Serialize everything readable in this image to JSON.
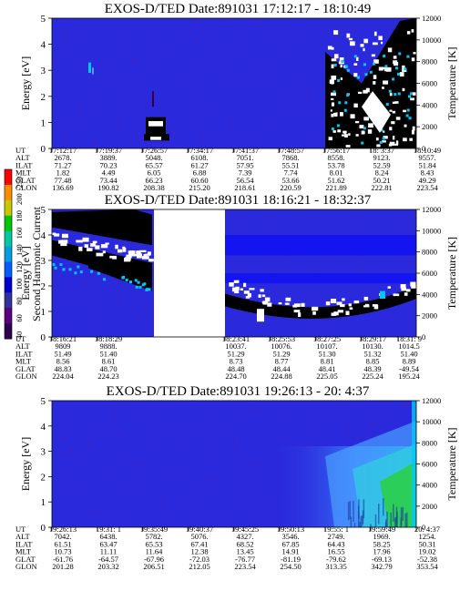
{
  "colors": {
    "background": "#2a2adc",
    "band": "#1414f0",
    "dark": "#000000",
    "white": "#ffffff",
    "cyan": "#00c8ff",
    "teal": "#009696",
    "green": "#28d228",
    "lightblue": "#50a0ff"
  },
  "colorbar": {
    "label": "Second Harmonic Current",
    "ticks": [
      "40",
      "60",
      "80",
      "100",
      "120",
      "140",
      "160",
      "180",
      "200",
      "250"
    ],
    "colors": [
      "#2e0050",
      "#5a0080",
      "#3030a0",
      "#0000d0",
      "#0060ff",
      "#00a0e0",
      "#00c8a0",
      "#00c800",
      "#c8c800",
      "#ff8c00",
      "#ff0000"
    ]
  },
  "chart_data": [
    {
      "type": "heatmap",
      "title": "EXOS-D/TED   Date:891031   17:12:17 - 18:10:49",
      "ylabel": "Energy [eV]",
      "ylabel_right": "Temperature [K]",
      "ylim": [
        0,
        5
      ],
      "ylim_right": [
        0,
        12000
      ],
      "yticks": [
        "0",
        "1",
        "2",
        "3",
        "4",
        "5"
      ],
      "yticks_right": [
        "0",
        "2000",
        "4000",
        "6000",
        "8000",
        "10000",
        "12000"
      ],
      "ephemeris": {
        "labels": [
          "UT",
          "ALT",
          "ILAT",
          "MLT",
          "GLAT",
          "GLON"
        ],
        "columns": [
          [
            "17:12:17",
            "2678.",
            "71.27",
            "1.82",
            "77.48",
            "136.69"
          ],
          [
            "17:19:37",
            "3889.",
            "70.23",
            "4.49",
            "73.44",
            "190.82"
          ],
          [
            "17:26:57",
            "5048.",
            "65.57",
            "6.05",
            "66.23",
            "208.38"
          ],
          [
            "17:34:17",
            "6108.",
            "61.27",
            "6.88",
            "60.60",
            "215.20"
          ],
          [
            "17:41:37",
            "7051.",
            "57.95",
            "7.39",
            "56.54",
            "218.61"
          ],
          [
            "17:48:57",
            "7868.",
            "55.51",
            "7.74",
            "53.66",
            "220.59"
          ],
          [
            "17:56:17",
            "8558.",
            "53.78",
            "8.01",
            "51.62",
            "221.89"
          ],
          [
            "18: 3:37",
            "9123.",
            "52.59",
            "8.24",
            "50.21",
            "222.81"
          ],
          [
            "18:10:49",
            "9557.",
            "51.84",
            "8.43",
            "49.29",
            "223.54"
          ]
        ]
      }
    },
    {
      "type": "heatmap",
      "title": "EXOS-D/TED   Date:891031   18:16:21 - 18:32:37",
      "ylabel": "Energy [eV]",
      "ylabel_right": "Temperature [K]",
      "ylim": [
        0,
        5
      ],
      "ylim_right": [
        0,
        12000
      ],
      "yticks": [
        "0",
        "1",
        "2",
        "3",
        "4",
        "5"
      ],
      "yticks_right": [
        "0",
        "2000",
        "4000",
        "6000",
        "8000",
        "10000",
        "12000"
      ],
      "ephemeris": {
        "labels": [
          "UT",
          "ALT",
          "ILAT",
          "MLT",
          "GLAT",
          "GLON"
        ],
        "columns": [
          [
            "18:16:21",
            "9809",
            "51.49",
            "8.56",
            "48.83",
            "224.04"
          ],
          [
            "18:18:29",
            "9888.",
            "51.40",
            "8.61",
            "48.70",
            "224.23"
          ],
          [
            "18:23:41",
            "10037.",
            "51.29",
            "8.73",
            "48.48",
            "224.70"
          ],
          [
            "18:25:53",
            "10076.",
            "51.29",
            "8.77",
            "48.44",
            "224.88"
          ],
          [
            "18:27:25",
            "10107.",
            "51.30",
            "8.81",
            "48.41",
            "225.05"
          ],
          [
            "18:29:17",
            "10130.",
            "51.32",
            "8.85",
            "48.39",
            "225.24"
          ],
          [
            "18:31: 9",
            "1014.5",
            "51.40",
            "8.89",
            "-49.54",
            "195.24"
          ]
        ]
      }
    },
    {
      "type": "heatmap",
      "title": "EXOS-D/TED   Date:891031   19:26:13 - 20: 4:37",
      "ylabel": "Energy [eV]",
      "ylabel_right": "Temperature [K]",
      "ylim": [
        0,
        5
      ],
      "ylim_right": [
        0,
        12000
      ],
      "yticks": [
        "0",
        "1",
        "2",
        "3",
        "4",
        "5"
      ],
      "yticks_right": [
        "0",
        "2000",
        "4000",
        "6000",
        "8000",
        "10000",
        "12000"
      ],
      "ephemeris": {
        "labels": [
          "UT",
          "ALT",
          "ILAT",
          "MLT",
          "GLAT",
          "GLON"
        ],
        "columns": [
          [
            "19:26:13",
            "7042.",
            "61.51",
            "10.73",
            "-61.76",
            "201.28"
          ],
          [
            "19:31: 1",
            "6438.",
            "63.47",
            "11.11",
            "-64.57",
            "203.32"
          ],
          [
            "19:35:49",
            "5782.",
            "65.53",
            "11.64",
            "-67.96",
            "206.51"
          ],
          [
            "19:40:37",
            "5076.",
            "67.41",
            "12.38",
            "-72.03",
            "212.05"
          ],
          [
            "19:45:25",
            "4327.",
            "68.52",
            "13.45",
            "-76.77",
            "223.54"
          ],
          [
            "19:50:13",
            "3546.",
            "67.85",
            "14.91",
            "-81.19",
            "254.50"
          ],
          [
            "19:55: 1",
            "2749.",
            "64.43",
            "16.55",
            "-79.62",
            "313.35"
          ],
          [
            "19:59:49",
            "1969.",
            "58.25",
            "17.96",
            "-69.13",
            "342.79"
          ],
          [
            "20: 4:37",
            "1254.",
            "50.31",
            "19.02",
            "-52.38",
            "353.54"
          ]
        ]
      }
    }
  ]
}
